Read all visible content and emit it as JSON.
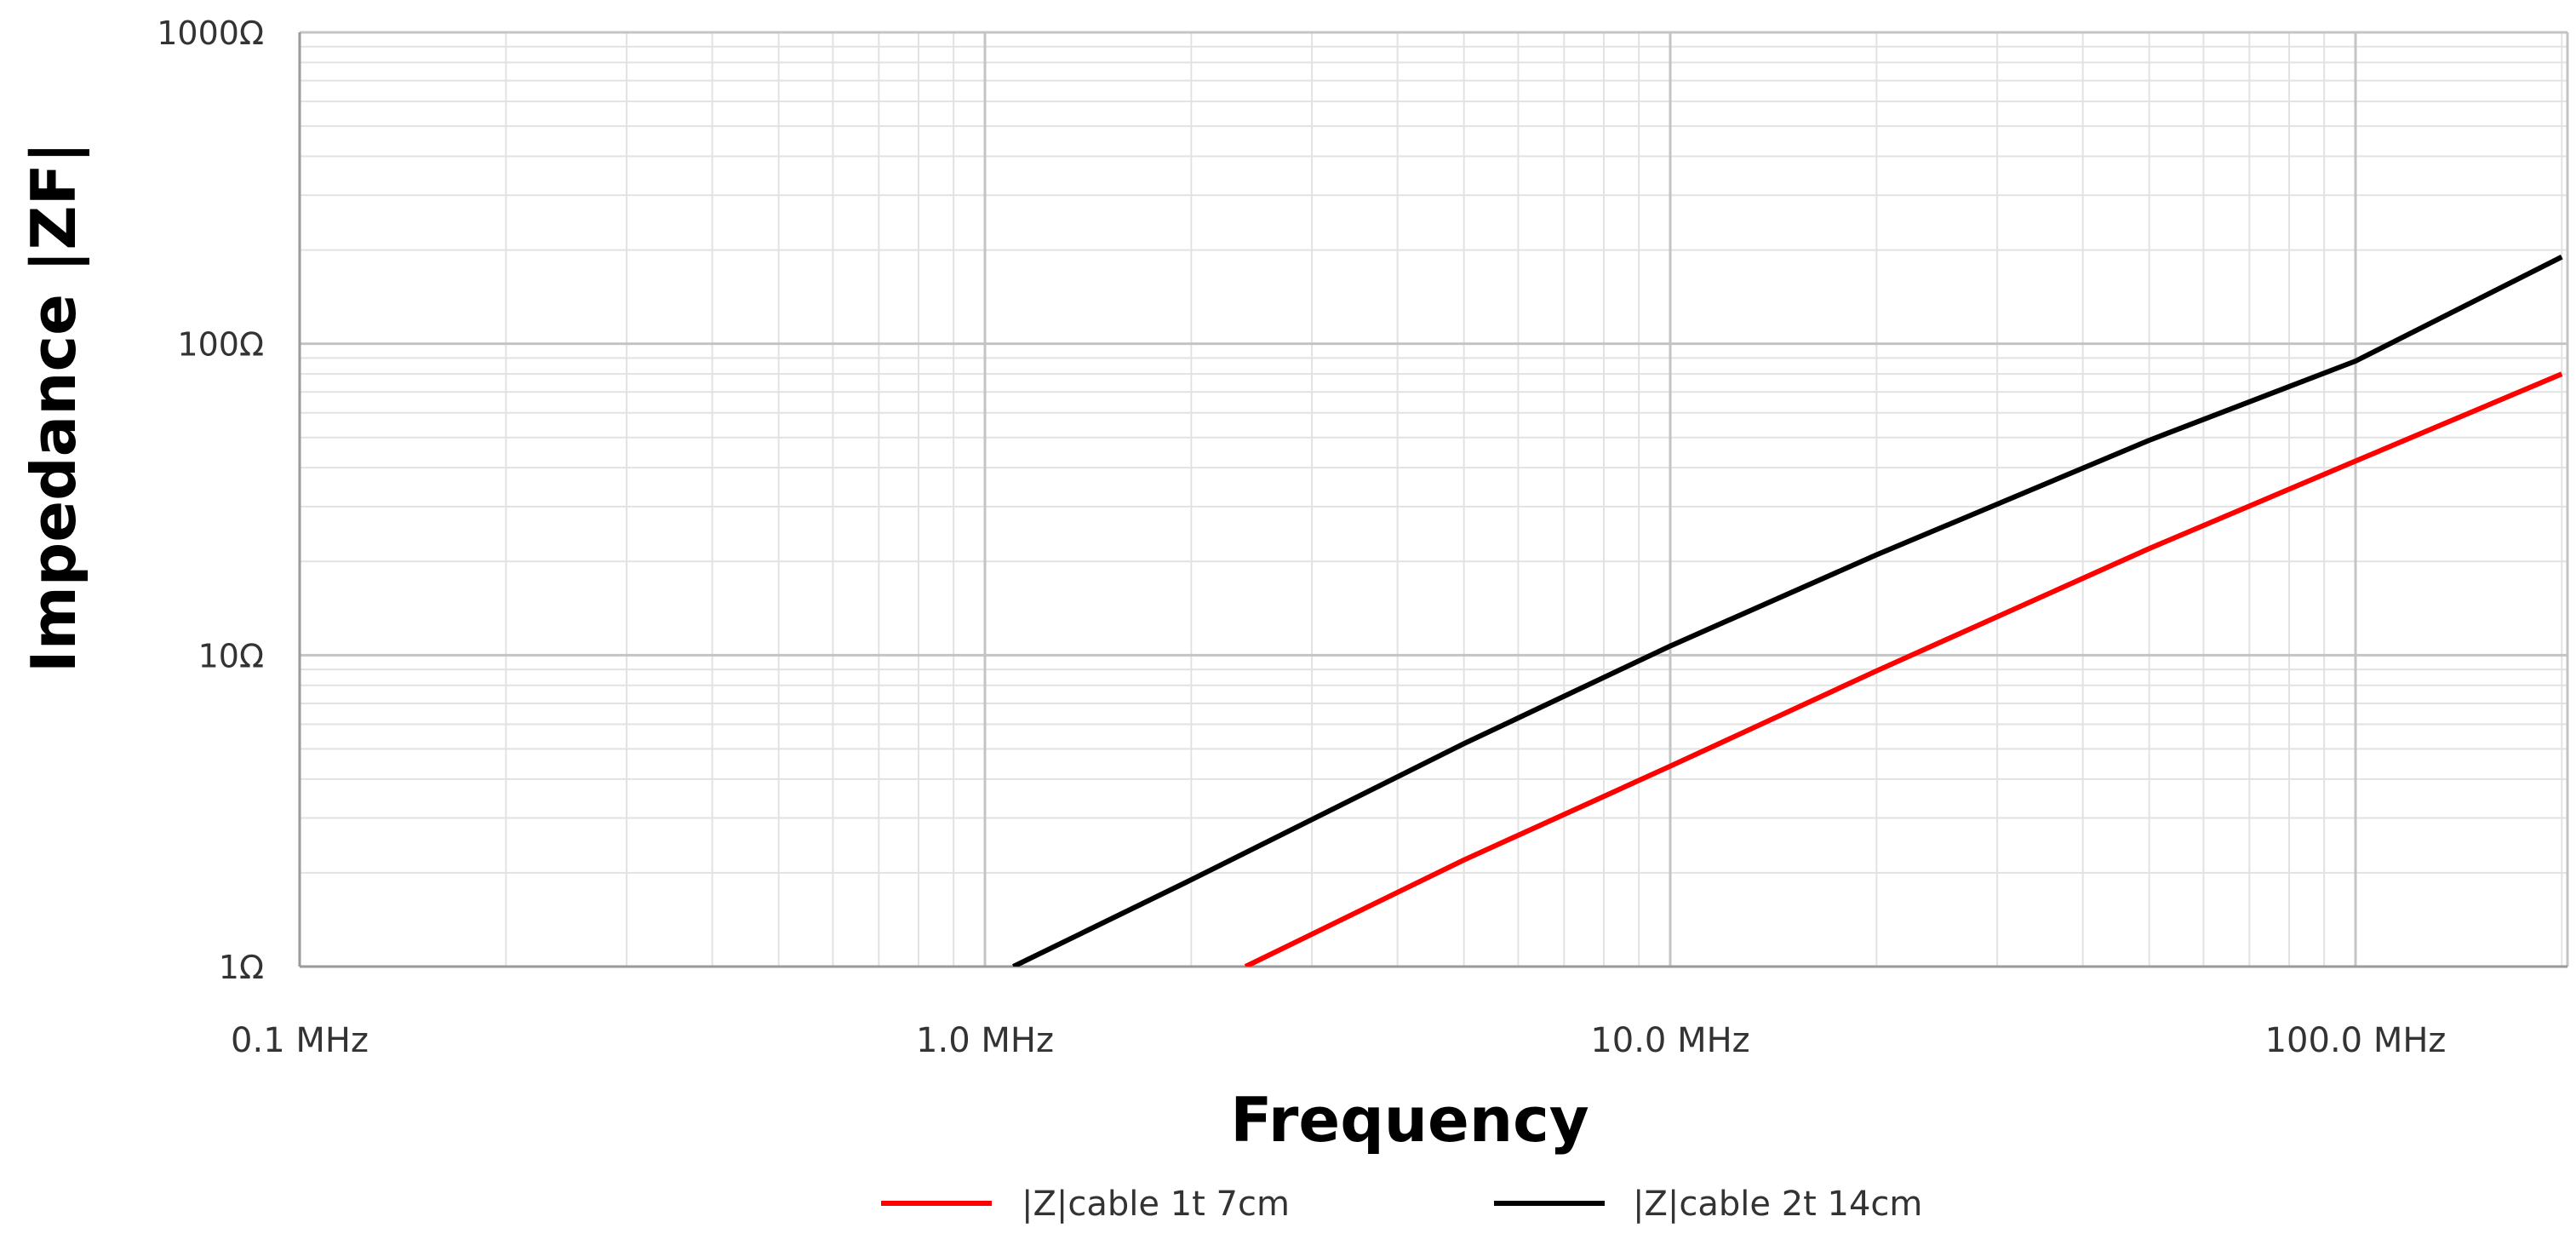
{
  "chart_data": {
    "type": "line",
    "xlabel": "Frequency",
    "ylabel": "Impedance |ZF|",
    "x_scale": "log",
    "y_scale": "log",
    "x_unit": "MHz",
    "y_unit": "Ω",
    "xlim": [
      0.1,
      200
    ],
    "ylim": [
      1,
      1000
    ],
    "x_ticks": [
      {
        "value": 0.1,
        "label": "0.1 MHz"
      },
      {
        "value": 1,
        "label": "1.0 MHz"
      },
      {
        "value": 10,
        "label": "10.0 MHz"
      },
      {
        "value": 100,
        "label": "100.0 MHz"
      }
    ],
    "y_ticks": [
      {
        "value": 1,
        "label": "1Ω"
      },
      {
        "value": 10,
        "label": "10Ω"
      },
      {
        "value": 100,
        "label": "100Ω"
      },
      {
        "value": 1000,
        "label": "1000Ω"
      }
    ],
    "grid": "major and minor",
    "legend_position": "bottom",
    "series": [
      {
        "name": "|Z|cable 1t 7cm",
        "color": "#ff0000",
        "x": [
          2.4,
          5,
          10,
          20,
          50,
          100,
          200
        ],
        "y": [
          1,
          2.2,
          4.4,
          8.9,
          22,
          42,
          80
        ]
      },
      {
        "name": "|Z|cable 2t 14cm",
        "color": "#000000",
        "x": [
          1.1,
          2,
          5,
          10,
          20,
          50,
          100,
          200
        ],
        "y": [
          1,
          1.9,
          5.2,
          10.7,
          21,
          49,
          88,
          190
        ]
      }
    ]
  }
}
